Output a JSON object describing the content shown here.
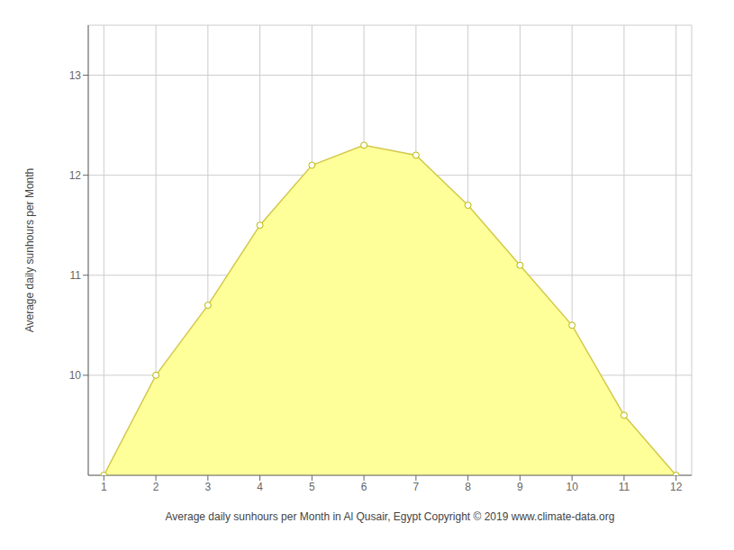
{
  "chart_data": {
    "type": "area",
    "x": [
      1,
      2,
      3,
      4,
      5,
      6,
      7,
      8,
      9,
      10,
      11,
      12
    ],
    "values": [
      9.0,
      10.0,
      10.7,
      11.5,
      12.1,
      12.3,
      12.2,
      11.7,
      11.1,
      10.5,
      9.6,
      9.0
    ],
    "color": "#d4c84a",
    "marker": "circle",
    "xlabel": "Average daily sunhours per Month in Al Qusair, Egypt Copyright © 2019 www.climate-data.org",
    "ylabel": "Average daily sunhours per Month",
    "xlim": [
      0.7,
      12.3
    ],
    "ylim": [
      9.0,
      13.5
    ],
    "xticks": [
      1,
      2,
      3,
      4,
      5,
      6,
      7,
      8,
      9,
      10,
      11,
      12
    ],
    "yticks": [
      10,
      11,
      12,
      13
    ],
    "grid": true
  }
}
